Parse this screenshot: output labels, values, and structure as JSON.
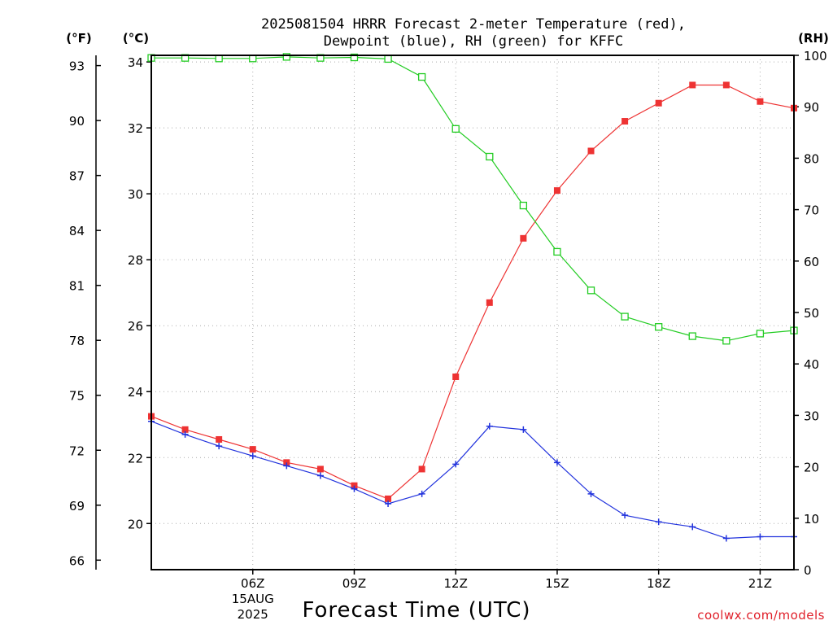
{
  "chart_data": {
    "type": "line",
    "title_line1": "2025081504 HRRR Forecast 2-meter Temperature (red),",
    "title_line2": "Dewpoint (blue), RH (green) for KFFC",
    "xlabel": "Forecast Time (UTC)",
    "left_units": "(°F)",
    "celsius_units": "(°C)",
    "right_units": "(RH)",
    "date_label_line1": "15AUG",
    "date_label_line2": "2025",
    "credit": "coolwx.com/models",
    "x_hours": [
      3,
      4,
      5,
      6,
      7,
      8,
      9,
      10,
      11,
      12,
      13,
      14,
      15,
      16,
      17,
      18,
      19,
      20,
      21,
      22
    ],
    "xlim": [
      3,
      22
    ],
    "x_ticks": [
      {
        "hour": 6,
        "label": "06Z"
      },
      {
        "hour": 9,
        "label": "09Z"
      },
      {
        "hour": 12,
        "label": "12Z"
      },
      {
        "hour": 15,
        "label": "15Z"
      },
      {
        "hour": 18,
        "label": "18Z"
      },
      {
        "hour": 21,
        "label": "21Z"
      }
    ],
    "celsius_lim": [
      18.6,
      34.2
    ],
    "celsius_ticks": [
      "20",
      "22",
      "24",
      "26",
      "28",
      "30",
      "32",
      "34"
    ],
    "fahrenheit_ticks": [
      "66",
      "69",
      "72",
      "75",
      "78",
      "81",
      "84",
      "87",
      "90",
      "93"
    ],
    "rh_lim": [
      0,
      100
    ],
    "rh_ticks": [
      "0",
      "10",
      "20",
      "30",
      "40",
      "50",
      "60",
      "70",
      "80",
      "90",
      "100"
    ],
    "grid": true,
    "series": [
      {
        "name": "Temperature",
        "color": "#ee3333",
        "marker": "filled-square",
        "axis": "celsius",
        "values": [
          23.25,
          22.85,
          22.55,
          22.25,
          21.85,
          21.65,
          21.15,
          20.75,
          21.65,
          24.45,
          26.7,
          28.65,
          30.1,
          31.3,
          32.2,
          32.75,
          33.3,
          33.3,
          32.8,
          32.6
        ]
      },
      {
        "name": "Dewpoint",
        "color": "#2233dd",
        "marker": "plus",
        "axis": "celsius",
        "values": [
          23.1,
          22.7,
          22.35,
          22.05,
          21.75,
          21.45,
          21.05,
          20.6,
          20.9,
          21.8,
          22.95,
          22.85,
          21.85,
          20.9,
          20.25,
          20.05,
          19.9,
          19.55,
          19.6,
          19.6
        ]
      },
      {
        "name": "RH",
        "color": "#22cc22",
        "marker": "open-square",
        "axis": "rh",
        "values": [
          99.5,
          99.5,
          99.4,
          99.4,
          99.7,
          99.5,
          99.6,
          99.3,
          95.8,
          85.7,
          80.3,
          70.8,
          61.8,
          54.3,
          49.2,
          47.2,
          45.4,
          44.5,
          45.9,
          46.5
        ]
      }
    ]
  }
}
